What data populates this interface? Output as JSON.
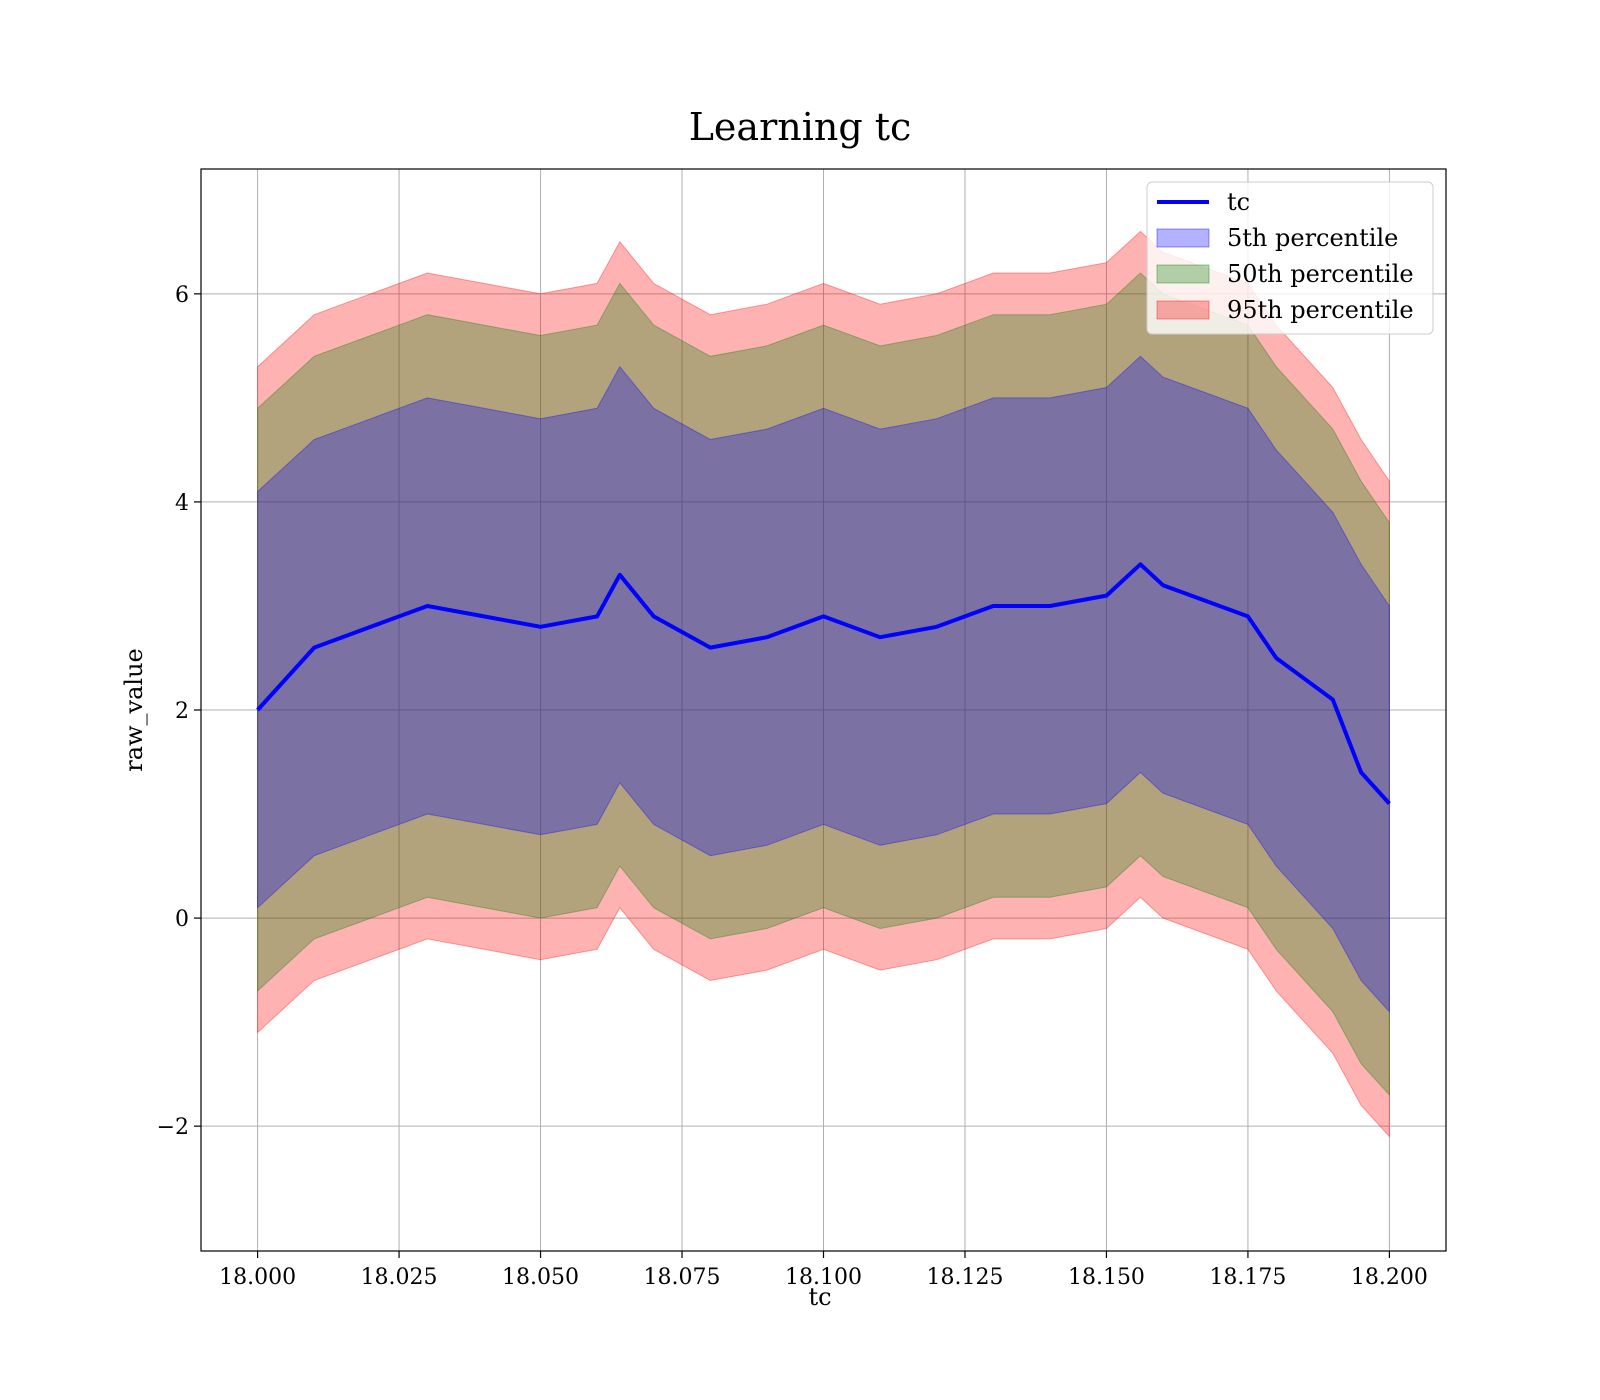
{
  "chart_data": {
    "type": "area",
    "title": "Learning tc",
    "xlabel": "tc",
    "ylabel": "raw_value",
    "xlim": [
      17.99,
      18.21
    ],
    "ylim": [
      -3.2,
      7.2
    ],
    "x_ticks": [
      18.0,
      18.025,
      18.05,
      18.075,
      18.1,
      18.125,
      18.15,
      18.175,
      18.2
    ],
    "x_tick_labels": [
      "18.000",
      "18.025",
      "18.050",
      "18.075",
      "18.100",
      "18.125",
      "18.150",
      "18.175",
      "18.200"
    ],
    "y_ticks": [
      -2,
      0,
      2,
      4,
      6
    ],
    "y_tick_labels": [
      "−2",
      "0",
      "2",
      "4",
      "6"
    ],
    "grid": true,
    "legend_position": "top-right",
    "x": [
      18.0,
      18.01,
      18.02,
      18.03,
      18.04,
      18.05,
      18.06,
      18.064,
      18.07,
      18.08,
      18.09,
      18.1,
      18.11,
      18.12,
      18.13,
      18.14,
      18.15,
      18.156,
      18.16,
      18.17,
      18.175,
      18.18,
      18.185,
      18.19,
      18.195,
      18.2
    ],
    "series": [
      {
        "name": "tc",
        "kind": "line",
        "color": "#0000ff",
        "values": [
          2.0,
          2.6,
          2.8,
          3.0,
          2.9,
          2.8,
          2.9,
          3.3,
          2.9,
          2.6,
          2.7,
          2.9,
          2.7,
          2.8,
          3.0,
          3.0,
          3.1,
          3.4,
          3.2,
          3.0,
          2.9,
          2.5,
          2.3,
          2.1,
          1.4,
          1.1
        ]
      },
      {
        "name": "5th percentile",
        "kind": "band",
        "color": "#0000ff",
        "lower": [
          0.1,
          0.6,
          0.8,
          1.0,
          0.9,
          0.8,
          0.9,
          1.3,
          0.9,
          0.6,
          0.7,
          0.9,
          0.7,
          0.8,
          1.0,
          1.0,
          1.1,
          1.4,
          1.2,
          1.0,
          0.9,
          0.5,
          0.2,
          -0.1,
          -0.6,
          -0.9
        ],
        "upper": [
          4.1,
          4.6,
          4.8,
          5.0,
          4.9,
          4.8,
          4.9,
          5.3,
          4.9,
          4.6,
          4.7,
          4.9,
          4.7,
          4.8,
          5.0,
          5.0,
          5.1,
          5.4,
          5.2,
          5.0,
          4.9,
          4.5,
          4.2,
          3.9,
          3.4,
          3.0
        ]
      },
      {
        "name": "50th percentile",
        "kind": "band",
        "color": "#008000",
        "lower": [
          -0.7,
          -0.2,
          0.0,
          0.2,
          0.1,
          0.0,
          0.1,
          0.5,
          0.1,
          -0.2,
          -0.1,
          0.1,
          -0.1,
          0.0,
          0.2,
          0.2,
          0.3,
          0.6,
          0.4,
          0.2,
          0.1,
          -0.3,
          -0.6,
          -0.9,
          -1.4,
          -1.7
        ],
        "upper": [
          4.9,
          5.4,
          5.6,
          5.8,
          5.7,
          5.6,
          5.7,
          6.1,
          5.7,
          5.4,
          5.5,
          5.7,
          5.5,
          5.6,
          5.8,
          5.8,
          5.9,
          6.2,
          6.0,
          5.8,
          5.7,
          5.3,
          5.0,
          4.7,
          4.2,
          3.8
        ]
      },
      {
        "name": "95th percentile",
        "kind": "band",
        "color": "#ff0000",
        "lower": [
          -1.1,
          -0.6,
          -0.4,
          -0.2,
          -0.3,
          -0.4,
          -0.3,
          0.1,
          -0.3,
          -0.6,
          -0.5,
          -0.3,
          -0.5,
          -0.4,
          -0.2,
          -0.2,
          -0.1,
          0.2,
          0.0,
          -0.2,
          -0.3,
          -0.7,
          -1.0,
          -1.3,
          -1.8,
          -2.1
        ],
        "upper": [
          5.3,
          5.8,
          6.0,
          6.2,
          6.1,
          6.0,
          6.1,
          6.5,
          6.1,
          5.8,
          5.9,
          6.1,
          5.9,
          6.0,
          6.2,
          6.2,
          6.3,
          6.6,
          6.4,
          6.2,
          6.1,
          5.7,
          5.4,
          5.1,
          4.6,
          4.2
        ]
      }
    ]
  }
}
